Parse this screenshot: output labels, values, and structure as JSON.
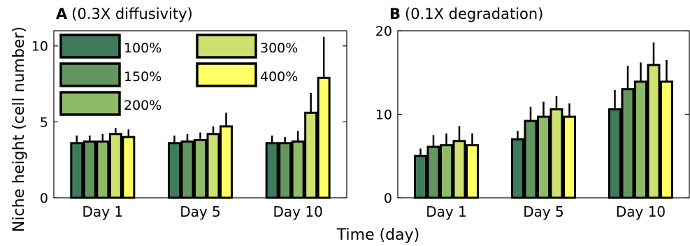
{
  "colors": {
    "100%": "#3f7a5c",
    "150%": "#63975f",
    "200%": "#8fba68",
    "300%": "#cde070",
    "400%": "#ffff66"
  },
  "figure": {
    "xlabel": "Time (day)",
    "ylabel": "Niche height (cell number)"
  },
  "legend": {
    "entries": [
      "100%",
      "150%",
      "200%",
      "300%",
      "400%"
    ],
    "placement": "top-left of panel A, two columns"
  },
  "chart_data": [
    {
      "type": "bar",
      "panel_letter": "A",
      "title": "(0.3X diffusivity)",
      "categories": [
        "Day 1",
        "Day 5",
        "Day 10"
      ],
      "ylim": [
        0,
        11
      ],
      "yticks": [
        0,
        5,
        10
      ],
      "grid": false,
      "error_bars": true,
      "series": [
        {
          "name": "100%",
          "values": [
            3.6,
            3.6,
            3.6
          ],
          "errors": [
            0.5,
            0.5,
            0.5
          ]
        },
        {
          "name": "150%",
          "values": [
            3.7,
            3.7,
            3.6
          ],
          "errors": [
            0.4,
            0.5,
            0.4
          ]
        },
        {
          "name": "200%",
          "values": [
            3.7,
            3.8,
            3.7
          ],
          "errors": [
            0.5,
            0.5,
            0.7
          ]
        },
        {
          "name": "300%",
          "values": [
            4.2,
            4.2,
            5.6
          ],
          "errors": [
            0.4,
            0.5,
            1.3
          ]
        },
        {
          "name": "400%",
          "values": [
            4.0,
            4.7,
            7.9
          ],
          "errors": [
            0.5,
            0.9,
            2.7
          ]
        }
      ]
    },
    {
      "type": "bar",
      "panel_letter": "B",
      "title": "(0.1X degradation)",
      "categories": [
        "Day 1",
        "Day 5",
        "Day 10"
      ],
      "ylim": [
        0,
        20
      ],
      "yticks": [
        0,
        10,
        20
      ],
      "grid": false,
      "error_bars": true,
      "series": [
        {
          "name": "100%",
          "values": [
            5.0,
            7.0,
            10.6
          ],
          "errors": [
            0.9,
            1.0,
            2.3
          ]
        },
        {
          "name": "150%",
          "values": [
            6.1,
            9.2,
            13.0
          ],
          "errors": [
            1.4,
            1.7,
            2.8
          ]
        },
        {
          "name": "200%",
          "values": [
            6.3,
            9.7,
            13.9
          ],
          "errors": [
            1.4,
            1.8,
            2.3
          ]
        },
        {
          "name": "300%",
          "values": [
            6.8,
            10.6,
            15.9
          ],
          "errors": [
            1.8,
            1.6,
            2.7
          ]
        },
        {
          "name": "400%",
          "values": [
            6.3,
            9.7,
            13.9
          ],
          "errors": [
            1.4,
            1.6,
            2.6
          ]
        }
      ]
    }
  ]
}
